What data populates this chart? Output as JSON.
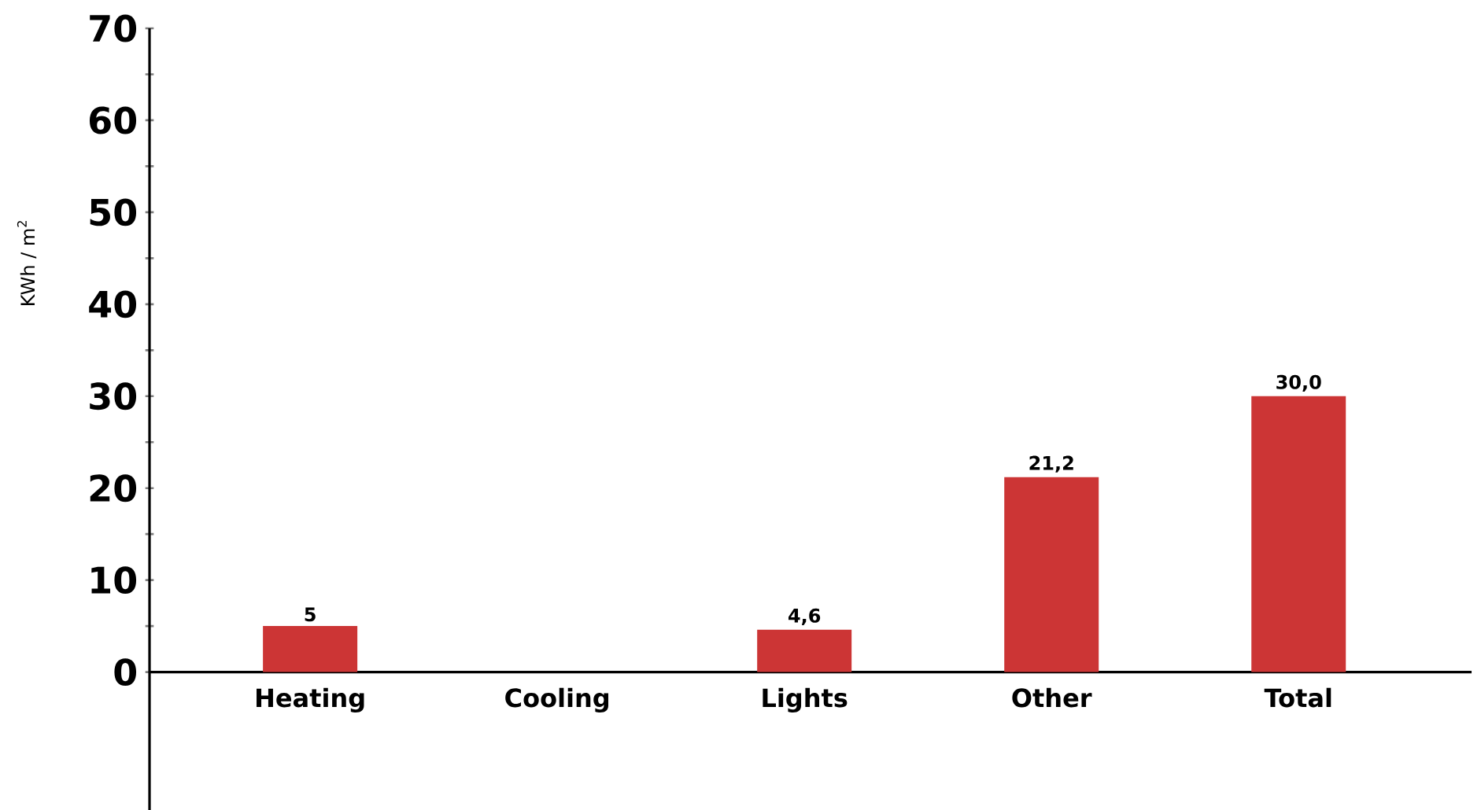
{
  "chart_data": {
    "type": "bar",
    "ylabel": "KWh / m$^{2}$",
    "categories": [
      "Heating",
      "Cooling",
      "Lights",
      "Other",
      "Total"
    ],
    "values": [
      5,
      null,
      4.6,
      21.2,
      30.0
    ],
    "value_labels": [
      "5",
      null,
      "4,6",
      "21,2",
      "30,0"
    ],
    "color": "#cc3535",
    "ylim": [
      -15,
      70
    ],
    "yticks": [
      0,
      {
        "value": 5,
        "label": null
      },
      10,
      {
        "value": 15,
        "label": null
      },
      20,
      {
        "value": 25,
        "label": null
      },
      30,
      {
        "value": 35,
        "label": null
      },
      40,
      {
        "value": 45,
        "label": null
      },
      50,
      {
        "value": 55,
        "label": null
      },
      60,
      {
        "value": 65,
        "label": null
      },
      70
    ]
  }
}
